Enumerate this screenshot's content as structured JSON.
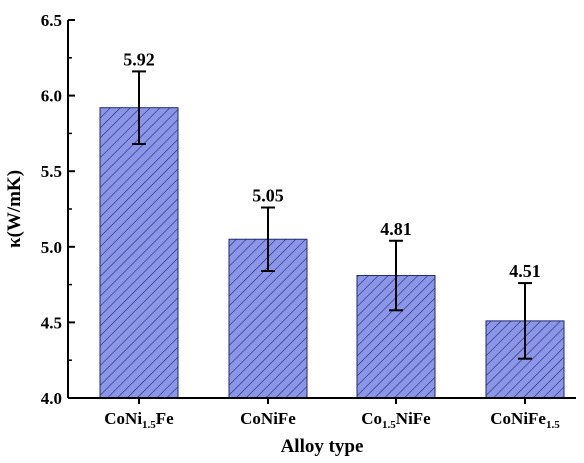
{
  "chart_data": {
    "type": "bar",
    "xlabel": "Alloy type",
    "ylabel": "κ(W/mK)",
    "ylim": [
      4.0,
      6.5
    ],
    "yticks": [
      "4.0",
      "4.5",
      "5.0",
      "5.5",
      "6.0",
      "6.5"
    ],
    "grid": false,
    "categories": [
      {
        "base": "CoNi",
        "sub": "1.5",
        "tail": "Fe"
      },
      {
        "base": "CoNiFe",
        "sub": "",
        "tail": ""
      },
      {
        "base": "Co",
        "sub": "1.5",
        "tail": "NiFe"
      },
      {
        "base": "CoNiFe",
        "sub": "1.5",
        "tail": ""
      }
    ],
    "values": [
      5.92,
      5.05,
      4.81,
      4.51
    ],
    "value_labels": [
      "5.92",
      "5.05",
      "4.81",
      "4.51"
    ],
    "errors_upper": [
      6.16,
      5.26,
      5.04,
      4.76
    ],
    "errors_lower": [
      5.68,
      4.84,
      4.58,
      4.26
    ],
    "bar_fill": "#8b96e8",
    "hatch_color": "#1f2a6e"
  }
}
